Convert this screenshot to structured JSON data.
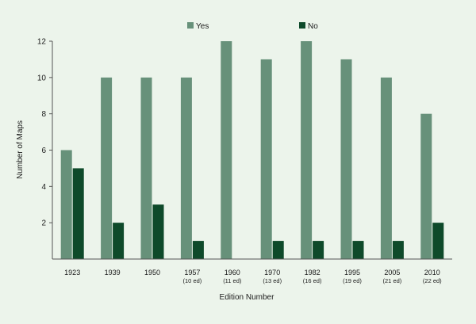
{
  "chart_data": {
    "type": "bar",
    "title": "",
    "xlabel": "Edition Number",
    "ylabel": "Number of Maps",
    "ylim": [
      0,
      12
    ],
    "yticks": [
      2,
      4,
      6,
      8,
      10,
      12
    ],
    "grid": false,
    "legend_position": "top",
    "categories": [
      {
        "year": "1923",
        "edition": ""
      },
      {
        "year": "1939",
        "edition": ""
      },
      {
        "year": "1950",
        "edition": ""
      },
      {
        "year": "1957",
        "edition": "(10 ed)"
      },
      {
        "year": "1960",
        "edition": "(11 ed)"
      },
      {
        "year": "1970",
        "edition": "(13 ed)"
      },
      {
        "year": "1982",
        "edition": "(16 ed)"
      },
      {
        "year": "1995",
        "edition": "(19 ed)"
      },
      {
        "year": "2005",
        "edition": "(21 ed)"
      },
      {
        "year": "2010",
        "edition": "(22 ed)"
      }
    ],
    "series": [
      {
        "name": "Yes",
        "color": "#67917a",
        "values": [
          6,
          10,
          10,
          10,
          12,
          11,
          12,
          11,
          10,
          8
        ]
      },
      {
        "name": "No",
        "color": "#0e4a2a",
        "values": [
          5,
          2,
          3,
          1,
          0,
          1,
          1,
          1,
          1,
          2
        ]
      }
    ]
  }
}
